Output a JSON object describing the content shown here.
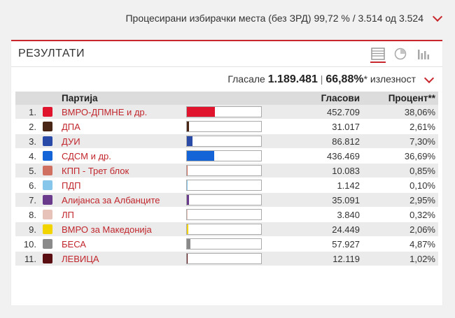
{
  "processed": {
    "text": "Процесирани избирачки места (без ЗРД) 99,72 % / 3.514 од 3.524"
  },
  "panel": {
    "title": "РЕЗУЛТАТИ",
    "turnout_label": "Гласале",
    "votes_cast": "1.189.481",
    "separator": "|",
    "turnout_pct": "66,88%",
    "turnout_suffix": "* излезност"
  },
  "table": {
    "headers": {
      "party": "Партија",
      "votes": "Гласови",
      "percent": "Процент**"
    },
    "rows": [
      {
        "num": "1.",
        "name": "ВМРО-ДПМНЕ и др.",
        "votes": "452.709",
        "percent": "38,06%",
        "share": 0.3806,
        "color": "#e0142c",
        "logo": "vmro-logo"
      },
      {
        "num": "2.",
        "name": "ДПА",
        "votes": "31.017",
        "percent": "2,61%",
        "share": 0.0261,
        "color": "#4a2616",
        "logo": "dpa-logo"
      },
      {
        "num": "3.",
        "name": "ДУИ",
        "votes": "86.812",
        "percent": "7,30%",
        "share": 0.073,
        "color": "#2a4aa8",
        "logo": "dui-logo"
      },
      {
        "num": "4.",
        "name": "СДСМ и др.",
        "votes": "436.469",
        "percent": "36,69%",
        "share": 0.3669,
        "color": "#1464d8",
        "logo": "sdsm-logo"
      },
      {
        "num": "5.",
        "name": "КПП - Трет блок",
        "votes": "10.083",
        "percent": "0,85%",
        "share": 0.0085,
        "color": "#d07060",
        "logo": "kpp-logo"
      },
      {
        "num": "6.",
        "name": "ПДП",
        "votes": "1.142",
        "percent": "0,10%",
        "share": 0.001,
        "color": "#86c6ea",
        "logo": "pdp-logo"
      },
      {
        "num": "7.",
        "name": "Алијанса за Албанците",
        "votes": "35.091",
        "percent": "2,95%",
        "share": 0.0295,
        "color": "#6a3a8c",
        "logo": "aa-logo"
      },
      {
        "num": "8.",
        "name": "ЛП",
        "votes": "3.840",
        "percent": "0,32%",
        "share": 0.0032,
        "color": "#e6c2b8",
        "logo": "lp-logo"
      },
      {
        "num": "9.",
        "name": "ВМРО за Македонија",
        "votes": "24.449",
        "percent": "2,06%",
        "share": 0.0206,
        "color": "#f2d400",
        "logo": "vmro-mk-logo"
      },
      {
        "num": "10.",
        "name": "БЕСА",
        "votes": "57.927",
        "percent": "4,87%",
        "share": 0.0487,
        "color": "#8a8a8a",
        "logo": "besa-logo"
      },
      {
        "num": "11.",
        "name": "ЛЕВИЦА",
        "votes": "12.119",
        "percent": "1,02%",
        "share": 0.0102,
        "color": "#5a0e12",
        "logo": "levica-logo"
      }
    ]
  },
  "icons": [
    "table-view-icon",
    "pie-chart-view-icon",
    "bar-chart-view-icon",
    "chevron-down-icon"
  ],
  "colors": {
    "accent": "#c8282d",
    "link": "#c1272d"
  }
}
